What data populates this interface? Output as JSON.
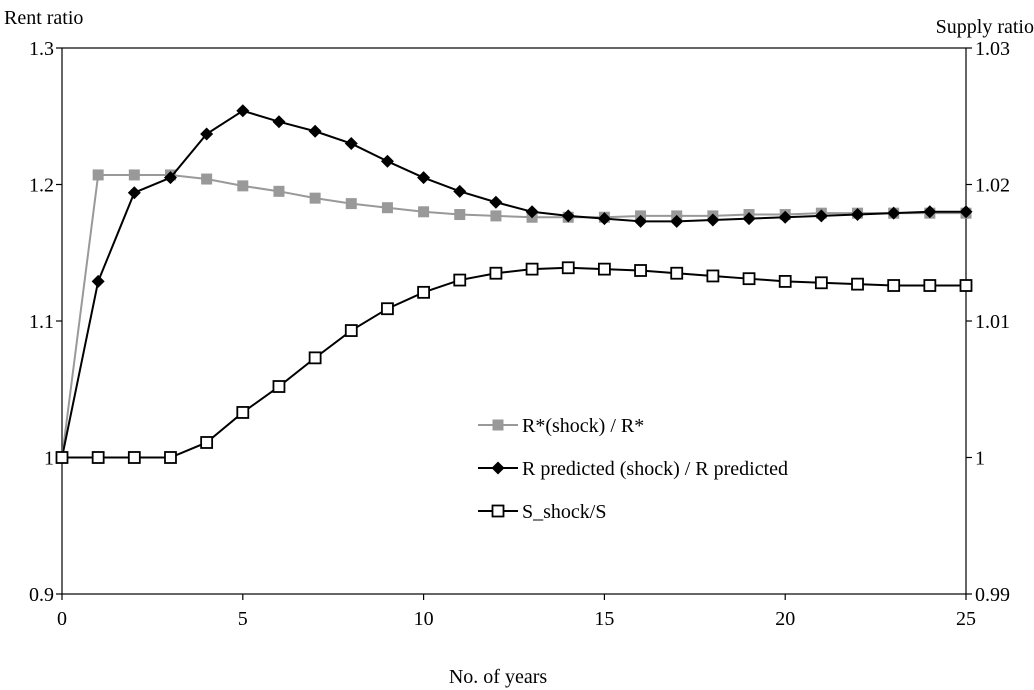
{
  "chart_data": {
    "type": "line",
    "xlabel": "No. of years",
    "ylabel_left": "Rent ratio",
    "ylabel_right": "Supply  ratio",
    "x_ticks": [
      "0",
      "5",
      "10",
      "15",
      "20",
      "25"
    ],
    "y_left_ticks": [
      "0.9",
      "1",
      "1.1",
      "1.2",
      "1.3"
    ],
    "y_right_ticks": [
      "0.99",
      "1",
      "1.01",
      "1.02",
      "1.03"
    ],
    "xlim": [
      0,
      25
    ],
    "ylim_left": [
      0.9,
      1.3
    ],
    "ylim_right": [
      0.99,
      1.03
    ],
    "grid": false,
    "legend_position": "center",
    "x": [
      0,
      1,
      2,
      3,
      4,
      5,
      6,
      7,
      8,
      9,
      10,
      11,
      12,
      13,
      14,
      15,
      16,
      17,
      18,
      19,
      20,
      21,
      22,
      23,
      24,
      25
    ],
    "series": [
      {
        "name": "R*(shock) / R*",
        "axis": "left",
        "color": "#999999",
        "marker": "filled-square",
        "values": [
          1.0,
          1.207,
          1.207,
          1.207,
          1.204,
          1.199,
          1.195,
          1.19,
          1.186,
          1.183,
          1.18,
          1.178,
          1.177,
          1.176,
          1.176,
          1.176,
          1.177,
          1.177,
          1.177,
          1.178,
          1.178,
          1.179,
          1.179,
          1.179,
          1.179,
          1.179
        ]
      },
      {
        "name": "R predicted (shock) / R predicted",
        "axis": "left",
        "color": "#000000",
        "marker": "filled-diamond",
        "values": [
          1.0,
          1.129,
          1.194,
          1.205,
          1.237,
          1.254,
          1.246,
          1.239,
          1.23,
          1.217,
          1.205,
          1.195,
          1.187,
          1.18,
          1.177,
          1.175,
          1.173,
          1.173,
          1.174,
          1.175,
          1.176,
          1.177,
          1.178,
          1.179,
          1.18,
          1.18
        ]
      },
      {
        "name": "S_shock/S",
        "axis": "right",
        "color": "#000000",
        "marker": "open-square",
        "values": [
          1.0,
          1.0,
          1.0,
          1.0,
          1.0011,
          1.0033,
          1.0052,
          1.0073,
          1.0093,
          1.0109,
          1.0121,
          1.013,
          1.0135,
          1.0138,
          1.0139,
          1.0138,
          1.0137,
          1.0135,
          1.0133,
          1.0131,
          1.0129,
          1.0128,
          1.0127,
          1.0126,
          1.0126,
          1.0126
        ]
      }
    ]
  }
}
